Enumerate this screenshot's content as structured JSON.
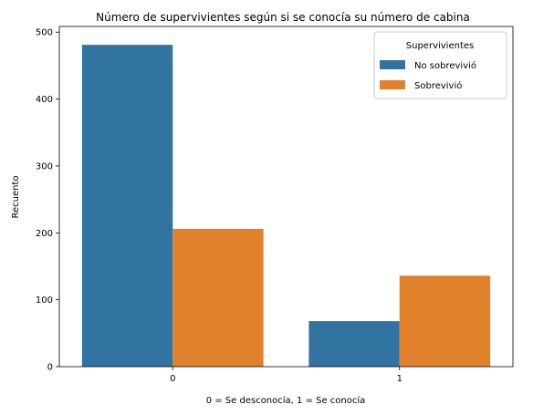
{
  "chart_data": {
    "type": "bar",
    "title": "Número de supervivientes según si se conocía su número de cabina",
    "xlabel": "0 = Se desconocía, 1 = Se conocía",
    "ylabel": "Recuento",
    "categories": [
      "0",
      "1"
    ],
    "series": [
      {
        "name": "No sobrevivió",
        "values": [
          481,
          68
        ],
        "color": "#3274a1"
      },
      {
        "name": "Sobrevivió",
        "values": [
          206,
          136
        ],
        "color": "#e1812c"
      }
    ],
    "ylim": [
      0,
      500
    ],
    "yticks": [
      0,
      100,
      200,
      300,
      400,
      500
    ],
    "legend": {
      "title": "Supervivientes",
      "position": "top-right"
    },
    "grid": false
  }
}
